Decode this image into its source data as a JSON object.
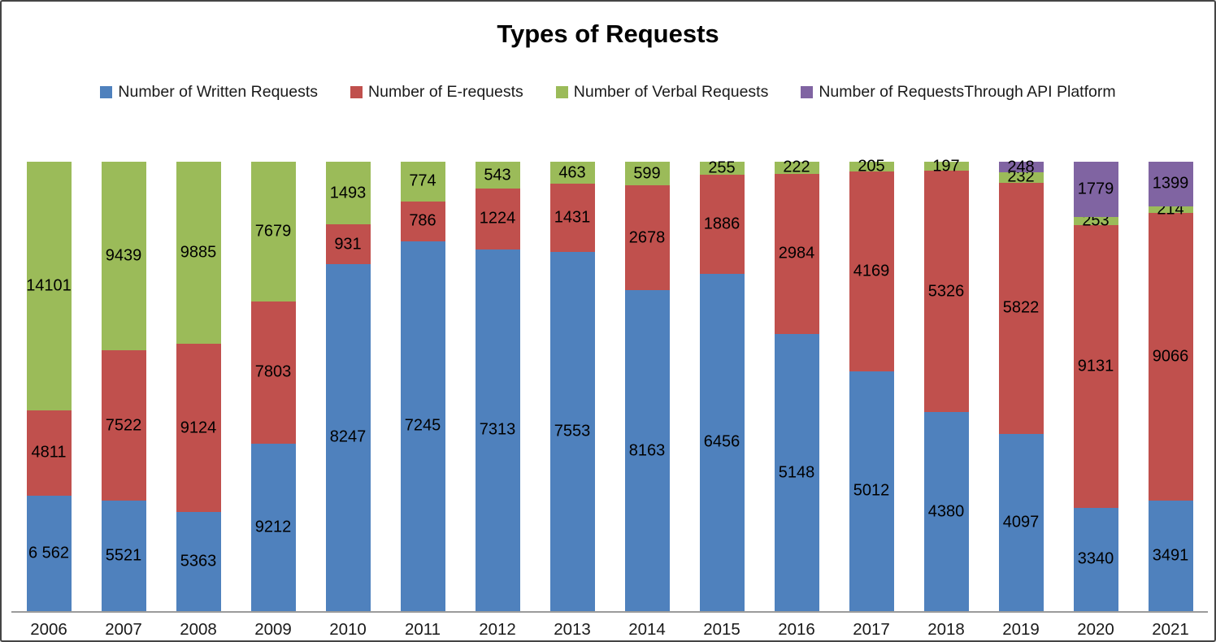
{
  "title": "Types of Requests",
  "chart_data": {
    "type": "bar",
    "subtype": "100-percent-stacked-column",
    "title": "Types of Requests",
    "xlabel": "",
    "ylabel": "",
    "value_axis_visible": false,
    "grid": false,
    "legend_position": "top",
    "axis_line_color": "#9b9b9b",
    "categories": [
      "2006",
      "2007",
      "2008",
      "2009",
      "2010",
      "2011",
      "2012",
      "2013",
      "2014",
      "2015",
      "2016",
      "2017",
      "2018",
      "2019",
      "2020",
      "2021"
    ],
    "series": [
      {
        "name": "Number of Written Requests",
        "key": "written-requests",
        "color": "#4F81BD",
        "values": [
          6562,
          5521,
          5363,
          9212,
          8247,
          7245,
          7313,
          7553,
          8163,
          6456,
          5148,
          5012,
          4380,
          4097,
          3340,
          3491
        ],
        "labels": [
          "6 562",
          "5521",
          "5363",
          "9212",
          "8247",
          "7245",
          "7313",
          "7553",
          "8163",
          "6456",
          "5148",
          "5012",
          "4380",
          "4097",
          "3340",
          "3491"
        ]
      },
      {
        "name": "Number of E-requests",
        "key": "e-requests",
        "color": "#C0504D",
        "values": [
          4811,
          7522,
          9124,
          7803,
          931,
          786,
          1224,
          1431,
          2678,
          1886,
          2984,
          4169,
          5326,
          5822,
          9131,
          9066
        ],
        "labels": [
          "4811",
          "7522",
          "9124",
          "7803",
          "931",
          "786",
          "1224",
          "1431",
          "2678",
          "1886",
          "2984",
          "4169",
          "5326",
          "5822",
          "9131",
          "9066"
        ]
      },
      {
        "name": "Number of Verbal Requests",
        "key": "verbal-requests",
        "color": "#9BBB59",
        "values": [
          14101,
          9439,
          9885,
          7679,
          1493,
          774,
          543,
          463,
          599,
          255,
          222,
          205,
          197,
          232,
          253,
          214
        ],
        "labels": [
          "14101",
          "9439",
          "9885",
          "7679",
          "1493",
          "774",
          "543",
          "463",
          "599",
          "255",
          "222",
          "205",
          "197",
          "232",
          "253",
          "214"
        ]
      },
      {
        "name": "Number of RequestsThrough API Platform",
        "key": "api-platform-requests",
        "color": "#8064A2",
        "values": [
          0,
          0,
          0,
          0,
          0,
          0,
          0,
          0,
          0,
          0,
          0,
          0,
          0,
          248,
          1779,
          1399
        ],
        "labels": [
          "",
          "",
          "",
          "",
          "",
          "",
          "",
          "",
          "",
          "",
          "",
          "",
          "",
          "248",
          "1779",
          "1399"
        ]
      }
    ]
  }
}
